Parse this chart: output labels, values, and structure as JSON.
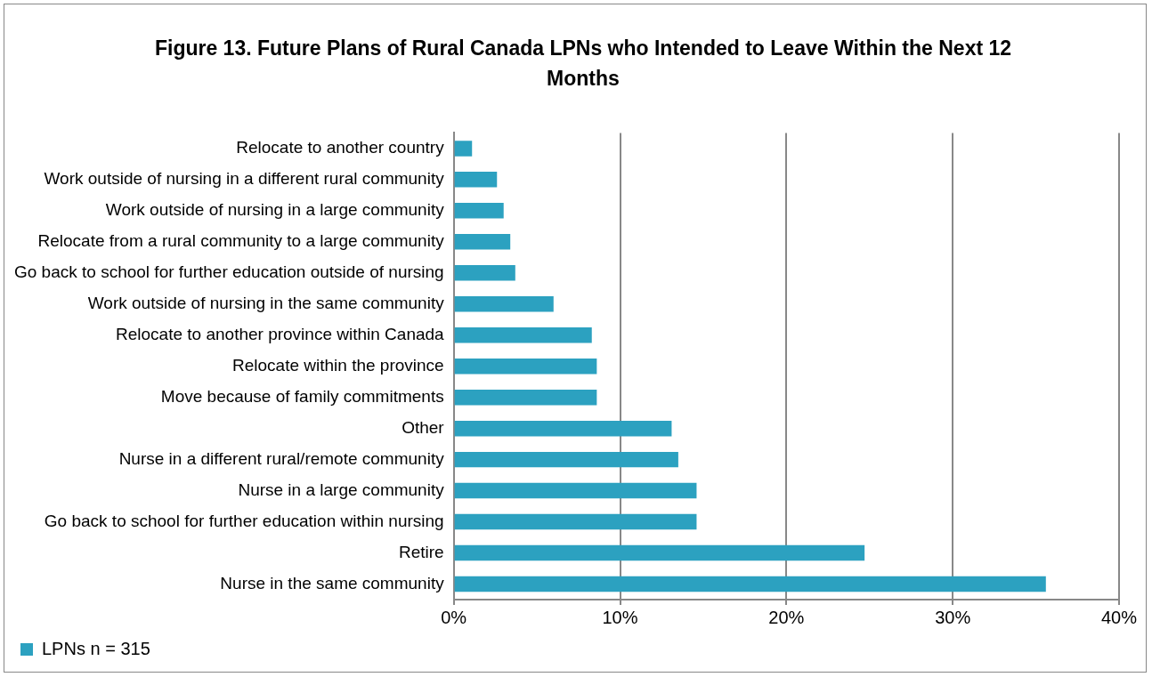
{
  "chart_data": {
    "type": "bar",
    "orientation": "horizontal",
    "title": "Figure 13. Future Plans of Rural Canada LPNs who Intended to Leave Within the Next 12 Months",
    "categories": [
      "Relocate to another country",
      "Work outside of nursing in a different rural community",
      "Work outside of nursing in a large community",
      "Relocate from a rural community to a large community",
      "Go back to school for further education outside of nursing",
      "Work outside of nursing in the same community",
      "Relocate to another province within Canada",
      "Relocate within the province",
      "Move because of family commitments",
      "Other",
      "Nurse in a different rural/remote community",
      "Nurse in a large community",
      "Go back to school for further education within nursing",
      "Retire",
      "Nurse in the same community"
    ],
    "series": [
      {
        "name": "LPNs n = 315",
        "color": "#2ca1c0",
        "values": [
          1.1,
          2.6,
          3.0,
          3.4,
          3.7,
          6.0,
          8.3,
          8.6,
          8.6,
          13.1,
          13.5,
          14.6,
          14.6,
          24.7,
          35.6
        ]
      }
    ],
    "xlim": [
      0,
      40
    ],
    "xticks": [
      {
        "value": 0,
        "label": "0%"
      },
      {
        "value": 10,
        "label": "10%"
      },
      {
        "value": 20,
        "label": "20%"
      },
      {
        "value": 30,
        "label": "30%"
      },
      {
        "value": 40,
        "label": "40%"
      }
    ],
    "grid": "x",
    "legend": "bottom left"
  }
}
